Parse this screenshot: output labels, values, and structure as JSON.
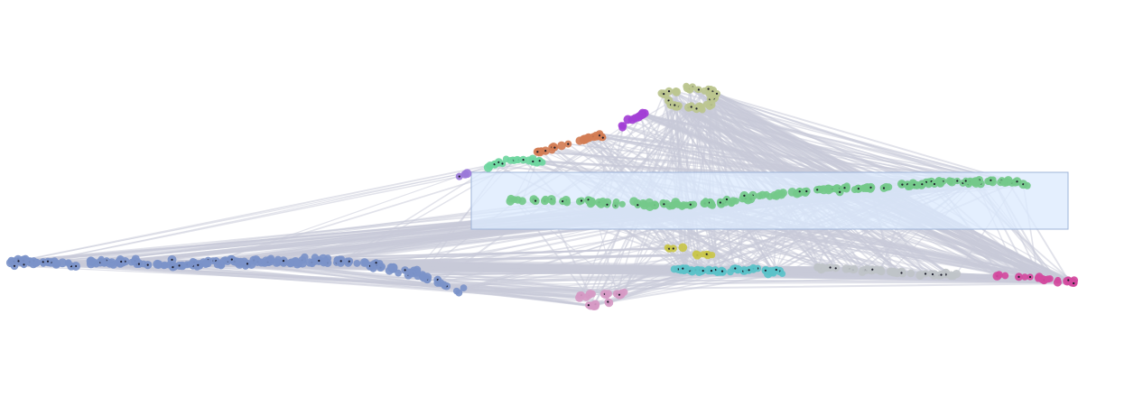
{
  "graph": {
    "edge_color": "#c8cad8",
    "selection_fill": "#dbeafe",
    "selection_stroke": "#9fb4d8",
    "clusters": [
      {
        "id": "blue",
        "color": "#7b93c9",
        "size": 210
      },
      {
        "id": "green",
        "color": "#74c98a",
        "size": 180
      },
      {
        "id": "olive",
        "color": "#bcc68f",
        "size": 45
      },
      {
        "id": "orange",
        "color": "#d27d55",
        "size": 30
      },
      {
        "id": "purple",
        "color": "#a33fd6",
        "size": 14
      },
      {
        "id": "teal-green",
        "color": "#6fd6a0",
        "size": 22
      },
      {
        "id": "violet",
        "color": "#9b7ad9",
        "size": 4
      },
      {
        "id": "yellow",
        "color": "#c9c64b",
        "size": 10
      },
      {
        "id": "cyan",
        "color": "#5bc2c9",
        "size": 55
      },
      {
        "id": "gray",
        "color": "#bfc3c8",
        "size": 55
      },
      {
        "id": "magenta",
        "color": "#d34a9e",
        "size": 24
      },
      {
        "id": "pink",
        "color": "#d69ac4",
        "size": 24
      }
    ]
  }
}
